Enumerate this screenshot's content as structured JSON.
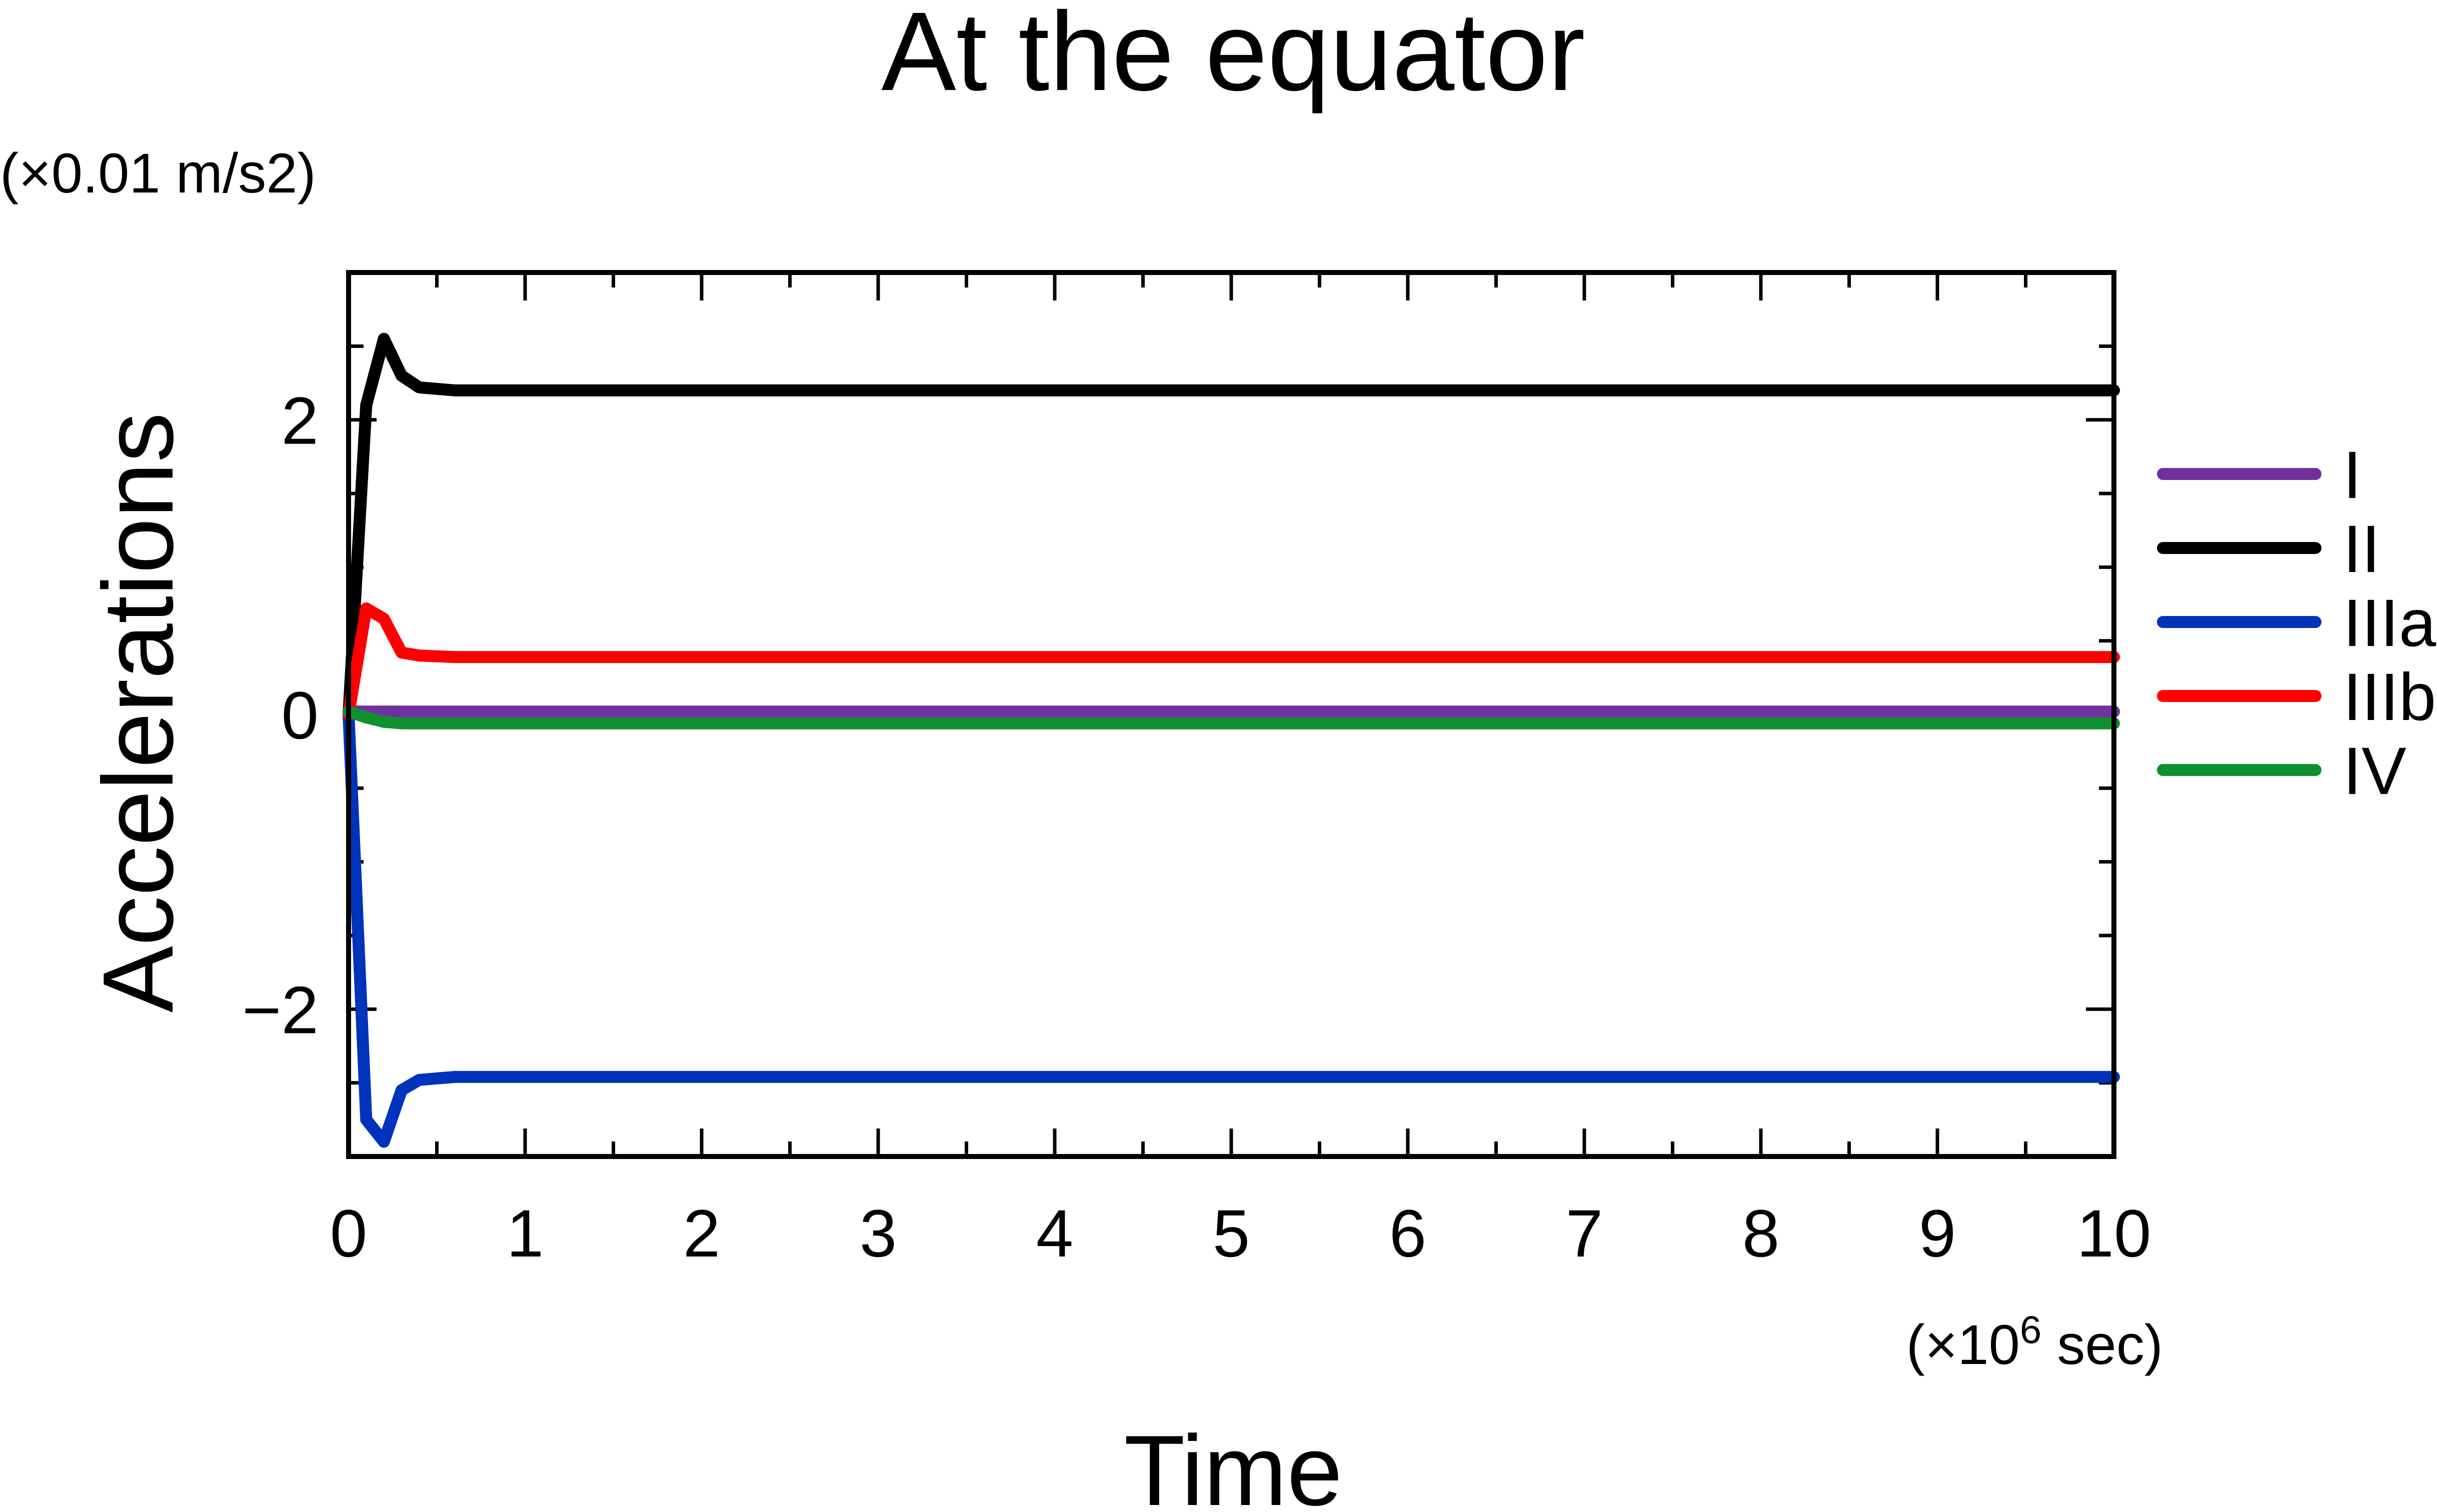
{
  "chart_data": {
    "type": "line",
    "title": "At the equator",
    "xlabel": "Time",
    "ylabel": "Accelerations",
    "y_unit": "(×0.01 m/s2)",
    "x_unit_prefix": "(×10",
    "x_unit_exp": "6",
    "x_unit_suffix": " sec)",
    "xlim": [
      0,
      10
    ],
    "ylim": [
      -3,
      3
    ],
    "x_ticks": [
      {
        "value": 0,
        "label": "0"
      },
      {
        "value": 1,
        "label": "1"
      },
      {
        "value": 2,
        "label": "2"
      },
      {
        "value": 3,
        "label": "3"
      },
      {
        "value": 4,
        "label": "4"
      },
      {
        "value": 5,
        "label": "5"
      },
      {
        "value": 6,
        "label": "6"
      },
      {
        "value": 7,
        "label": "7"
      },
      {
        "value": 8,
        "label": "8"
      },
      {
        "value": 9,
        "label": "9"
      },
      {
        "value": 10,
        "label": "10"
      }
    ],
    "y_ticks": [
      {
        "value": -2,
        "label": "−2"
      },
      {
        "value": 0,
        "label": "0"
      },
      {
        "value": 2,
        "label": "2"
      }
    ],
    "x_minor_step": 0.5,
    "y_minor_step": 0.5,
    "grid": false,
    "legend_position": "right",
    "series": [
      {
        "name": "I",
        "color": "#7030a0",
        "x": [
          0,
          0.1,
          0.2,
          0.3,
          0.4,
          0.6,
          1,
          10
        ],
        "y": [
          0.02,
          0.02,
          0.02,
          0.02,
          0.02,
          0.02,
          0.02,
          0.02
        ]
      },
      {
        "name": "II",
        "color": "#000000",
        "x": [
          0,
          0.1,
          0.2,
          0.3,
          0.4,
          0.6,
          1,
          10
        ],
        "y": [
          0,
          2.1,
          2.55,
          2.3,
          2.22,
          2.2,
          2.2,
          2.2
        ]
      },
      {
        "name": "IIIa",
        "color": "#0033bb",
        "x": [
          0,
          0.1,
          0.2,
          0.3,
          0.4,
          0.6,
          1,
          10
        ],
        "y": [
          0,
          -2.75,
          -2.9,
          -2.55,
          -2.48,
          -2.46,
          -2.46,
          -2.46
        ]
      },
      {
        "name": "IIIb",
        "color": "#ff0000",
        "x": [
          0,
          0.1,
          0.2,
          0.3,
          0.4,
          0.6,
          1,
          10
        ],
        "y": [
          0,
          0.72,
          0.65,
          0.42,
          0.4,
          0.39,
          0.39,
          0.39
        ]
      },
      {
        "name": "IV",
        "color": "#109030",
        "x": [
          0,
          0.1,
          0.2,
          0.3,
          0.4,
          0.6,
          1,
          10
        ],
        "y": [
          0.02,
          -0.02,
          -0.05,
          -0.06,
          -0.06,
          -0.06,
          -0.06,
          -0.06
        ]
      }
    ]
  }
}
